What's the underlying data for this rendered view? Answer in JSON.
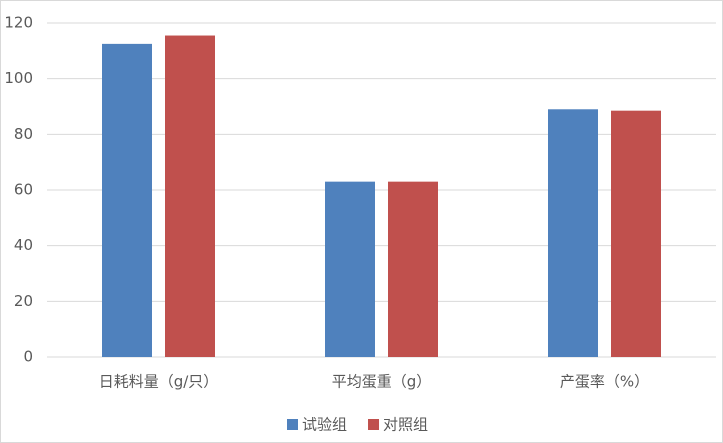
{
  "chart_data": {
    "type": "bar",
    "categories": [
      "日耗料量（g/只）",
      "平均蛋重（g）",
      "产蛋率（%）"
    ],
    "series": [
      {
        "name": "试验组",
        "color": "#4f81bd",
        "values": [
          112.5,
          63,
          89
        ]
      },
      {
        "name": "对照组",
        "color": "#c0504d",
        "values": [
          115.5,
          63,
          88.5
        ]
      }
    ],
    "ylim": [
      0,
      120
    ],
    "yticks": [
      0,
      20,
      40,
      60,
      80,
      100,
      120
    ],
    "grid": true,
    "legend": "bottom"
  }
}
